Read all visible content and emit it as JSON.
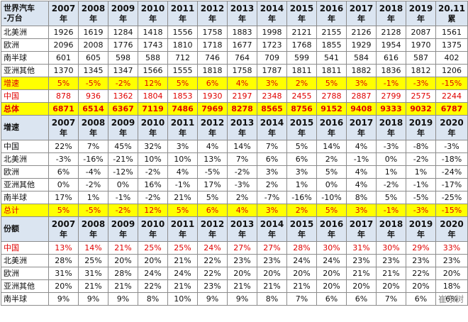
{
  "sections": [
    {
      "header": {
        "label": [
          "世界汽车",
          "-万台"
        ],
        "cols": [
          [
            "2007",
            "年"
          ],
          [
            "2008",
            "年"
          ],
          [
            "2009",
            "年"
          ],
          [
            "2010",
            "年"
          ],
          [
            "2011",
            "年"
          ],
          [
            "2012",
            "年"
          ],
          [
            "2013",
            "年"
          ],
          [
            "2014",
            "年"
          ],
          [
            "2015",
            "年"
          ],
          [
            "2016",
            "年"
          ],
          [
            "2017",
            "年"
          ],
          [
            "2018",
            "年"
          ],
          [
            "2019",
            "年"
          ],
          [
            "20.11",
            "累"
          ]
        ]
      },
      "rows": [
        {
          "label": "北美洲",
          "style": "",
          "values": [
            "1926",
            "1619",
            "1284",
            "1418",
            "1556",
            "1758",
            "1883",
            "1998",
            "2121",
            "2155",
            "2126",
            "2128",
            "2087",
            "1561"
          ]
        },
        {
          "label": "欧洲",
          "style": "",
          "values": [
            "2096",
            "2008",
            "1776",
            "1743",
            "1810",
            "1718",
            "1677",
            "1723",
            "1768",
            "1855",
            "1929",
            "1954",
            "1970",
            "1375"
          ]
        },
        {
          "label": "南半球",
          "style": "",
          "values": [
            "601",
            "605",
            "598",
            "588",
            "712",
            "746",
            "764",
            "709",
            "599",
            "541",
            "584",
            "616",
            "587",
            "402"
          ]
        },
        {
          "label": "亚洲其他",
          "style": "",
          "values": [
            "1370",
            "1345",
            "1347",
            "1566",
            "1555",
            "1818",
            "1758",
            "1787",
            "1811",
            "1811",
            "1882",
            "1836",
            "1812",
            "1206"
          ]
        },
        {
          "label": "增速",
          "style": "yel",
          "values": [
            "5%",
            "-5%",
            "-2%",
            "12%",
            "5%",
            "6%",
            "4%",
            "3%",
            "2%",
            "5%",
            "3%",
            "-1%",
            "-3%",
            "-15%"
          ]
        },
        {
          "label": "中国",
          "style": "red",
          "values": [
            "878",
            "936",
            "1362",
            "1804",
            "1853",
            "1930",
            "2197",
            "2348",
            "2455",
            "2788",
            "2887",
            "2799",
            "2575",
            "2244"
          ]
        },
        {
          "label": "总体",
          "style": "yel",
          "values": [
            "6871",
            "6514",
            "6367",
            "7119",
            "7486",
            "7969",
            "8278",
            "8565",
            "8756",
            "9152",
            "9408",
            "9333",
            "9032",
            "6787"
          ]
        }
      ]
    },
    {
      "header": {
        "label": [
          "增速"
        ],
        "cols": [
          [
            "2007",
            "年"
          ],
          [
            "2008",
            "年"
          ],
          [
            "2009",
            "年"
          ],
          [
            "2010",
            "年"
          ],
          [
            "2011",
            "年"
          ],
          [
            "2012",
            "年"
          ],
          [
            "2013",
            "年"
          ],
          [
            "2014",
            "年"
          ],
          [
            "2015",
            "年"
          ],
          [
            "2016",
            "年"
          ],
          [
            "2017",
            "年"
          ],
          [
            "2018",
            "年"
          ],
          [
            "2019",
            "年"
          ],
          [
            "2020",
            "年"
          ]
        ]
      },
      "rows": [
        {
          "label": "中国",
          "style": "",
          "values": [
            "22%",
            "7%",
            "45%",
            "32%",
            "3%",
            "4%",
            "14%",
            "7%",
            "5%",
            "14%",
            "4%",
            "-3%",
            "-8%",
            "-3%"
          ]
        },
        {
          "label": "北美洲",
          "style": "",
          "values": [
            "-3%",
            "-16%",
            "-21%",
            "10%",
            "10%",
            "13%",
            "7%",
            "6%",
            "6%",
            "2%",
            "-1%",
            "0%",
            "-2%",
            "-18%"
          ]
        },
        {
          "label": "欧洲",
          "style": "",
          "values": [
            "6%",
            "-4%",
            "-12%",
            "-2%",
            "4%",
            "-5%",
            "-2%",
            "3%",
            "3%",
            "5%",
            "4%",
            "1%",
            "1%",
            "-24%"
          ]
        },
        {
          "label": "亚洲其他",
          "style": "",
          "values": [
            "0%",
            "-2%",
            "0%",
            "16%",
            "-1%",
            "17%",
            "-3%",
            "2%",
            "1%",
            "0%",
            "4%",
            "-2%",
            "-1%",
            "-17%"
          ]
        },
        {
          "label": "南半球",
          "style": "",
          "values": [
            "17%",
            "1%",
            "-1%",
            "-2%",
            "21%",
            "5%",
            "2%",
            "-7%",
            "-16%",
            "-10%",
            "8%",
            "5%",
            "-5%",
            "-25%"
          ]
        },
        {
          "label": "总计",
          "style": "yel",
          "values": [
            "5%",
            "-5%",
            "-2%",
            "12%",
            "5%",
            "6%",
            "4%",
            "3%",
            "2%",
            "5%",
            "3%",
            "-1%",
            "-3%",
            "-15%"
          ]
        }
      ]
    },
    {
      "header": {
        "label": [
          "份额"
        ],
        "cols": [
          [
            "2007",
            "年"
          ],
          [
            "2008",
            "年"
          ],
          [
            "2009",
            "年"
          ],
          [
            "2010",
            "年"
          ],
          [
            "2011",
            "年"
          ],
          [
            "2012",
            "年"
          ],
          [
            "2013",
            "年"
          ],
          [
            "2014",
            "年"
          ],
          [
            "2015",
            "年"
          ],
          [
            "2016",
            "年"
          ],
          [
            "2017",
            "年"
          ],
          [
            "2018",
            "年"
          ],
          [
            "2019",
            "年"
          ],
          [
            "2020",
            "年"
          ]
        ]
      },
      "rows": [
        {
          "label": "中国",
          "style": "red",
          "values": [
            "13%",
            "14%",
            "21%",
            "25%",
            "25%",
            "24%",
            "27%",
            "27%",
            "28%",
            "30%",
            "31%",
            "30%",
            "29%",
            "33%"
          ]
        },
        {
          "label": "北美洲",
          "style": "",
          "values": [
            "28%",
            "25%",
            "20%",
            "20%",
            "21%",
            "22%",
            "23%",
            "23%",
            "24%",
            "24%",
            "23%",
            "23%",
            "23%",
            "23%"
          ]
        },
        {
          "label": "欧洲",
          "style": "",
          "values": [
            "31%",
            "31%",
            "28%",
            "24%",
            "24%",
            "22%",
            "20%",
            "20%",
            "20%",
            "20%",
            "21%",
            "21%",
            "22%",
            "20%"
          ]
        },
        {
          "label": "亚洲其他",
          "style": "",
          "values": [
            "20%",
            "21%",
            "21%",
            "22%",
            "21%",
            "23%",
            "21%",
            "21%",
            "21%",
            "20%",
            "20%",
            "20%",
            "20%",
            "18%"
          ]
        },
        {
          "label": "南半球",
          "style": "",
          "values": [
            "9%",
            "9%",
            "9%",
            "8%",
            "10%",
            "9%",
            "9%",
            "8%",
            "7%",
            "6%",
            "6%",
            "7%",
            "6%",
            "6%"
          ]
        }
      ]
    }
  ],
  "watermark": "崔东树"
}
